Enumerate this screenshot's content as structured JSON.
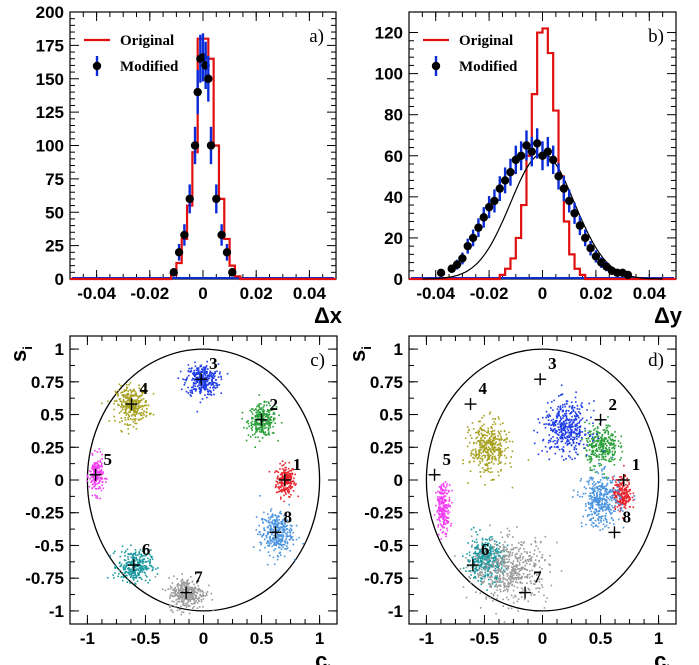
{
  "chart_data": [
    {
      "type": "histogram",
      "panel_label": "a)",
      "xlabel": "Δx",
      "ylabel": "",
      "xlim": [
        -0.05,
        0.05
      ],
      "ylim": [
        0,
        200
      ],
      "xticks": [
        "-0.04",
        "-0.02",
        "0",
        "0.02",
        "0.04"
      ],
      "yticks": [
        "0",
        "25",
        "50",
        "75",
        "100",
        "125",
        "150",
        "175",
        "200"
      ],
      "legend": [
        "Original",
        "Modified"
      ],
      "bin_width": 0.002,
      "bin_start": -0.012,
      "original_counts": [
        3,
        12,
        30,
        55,
        95,
        180,
        180,
        165,
        100,
        60,
        30,
        10,
        2
      ],
      "modified_points": [
        {
          "x": -0.011,
          "y": 5
        },
        {
          "x": -0.009,
          "y": 20
        },
        {
          "x": -0.007,
          "y": 33
        },
        {
          "x": -0.005,
          "y": 60
        },
        {
          "x": -0.003,
          "y": 100
        },
        {
          "x": -0.002,
          "y": 140
        },
        {
          "x": -0.001,
          "y": 165
        },
        {
          "x": 0.0,
          "y": 166
        },
        {
          "x": 0.001,
          "y": 160
        },
        {
          "x": 0.002,
          "y": 150
        },
        {
          "x": 0.003,
          "y": 100
        },
        {
          "x": 0.005,
          "y": 60
        },
        {
          "x": 0.007,
          "y": 33
        },
        {
          "x": 0.009,
          "y": 20
        },
        {
          "x": 0.011,
          "y": 5
        }
      ]
    },
    {
      "type": "histogram",
      "panel_label": "b)",
      "xlabel": "Δy",
      "ylabel": "",
      "xlim": [
        -0.05,
        0.05
      ],
      "ylim": [
        0,
        130
      ],
      "xticks": [
        "-0.04",
        "-0.02",
        "0",
        "0.02",
        "0.04"
      ],
      "yticks": [
        "0",
        "20",
        "40",
        "60",
        "80",
        "100",
        "120"
      ],
      "legend": [
        "Original",
        "Modified"
      ],
      "bin_width": 0.002,
      "bin_start": -0.016,
      "original_counts": [
        2,
        5,
        10,
        20,
        36,
        60,
        90,
        120,
        122,
        110,
        82,
        50,
        28,
        12,
        5,
        2
      ],
      "modified_points": [
        {
          "x": -0.038,
          "y": 3
        },
        {
          "x": -0.034,
          "y": 5
        },
        {
          "x": -0.032,
          "y": 7
        },
        {
          "x": -0.03,
          "y": 10
        },
        {
          "x": -0.028,
          "y": 16
        },
        {
          "x": -0.026,
          "y": 20
        },
        {
          "x": -0.024,
          "y": 25
        },
        {
          "x": -0.022,
          "y": 30
        },
        {
          "x": -0.02,
          "y": 35
        },
        {
          "x": -0.018,
          "y": 38
        },
        {
          "x": -0.016,
          "y": 44
        },
        {
          "x": -0.014,
          "y": 48
        },
        {
          "x": -0.012,
          "y": 52
        },
        {
          "x": -0.01,
          "y": 58
        },
        {
          "x": -0.008,
          "y": 60
        },
        {
          "x": -0.006,
          "y": 65
        },
        {
          "x": -0.004,
          "y": 62
        },
        {
          "x": -0.002,
          "y": 66
        },
        {
          "x": 0.0,
          "y": 60
        },
        {
          "x": 0.002,
          "y": 62
        },
        {
          "x": 0.004,
          "y": 58
        },
        {
          "x": 0.006,
          "y": 50
        },
        {
          "x": 0.008,
          "y": 44
        },
        {
          "x": 0.01,
          "y": 38
        },
        {
          "x": 0.012,
          "y": 32
        },
        {
          "x": 0.014,
          "y": 26
        },
        {
          "x": 0.016,
          "y": 20
        },
        {
          "x": 0.018,
          "y": 15
        },
        {
          "x": 0.02,
          "y": 11
        },
        {
          "x": 0.022,
          "y": 8
        },
        {
          "x": 0.024,
          "y": 6
        },
        {
          "x": 0.026,
          "y": 4
        },
        {
          "x": 0.028,
          "y": 3
        },
        {
          "x": 0.03,
          "y": 3
        },
        {
          "x": 0.032,
          "y": 2
        }
      ],
      "fit_peak": 61,
      "fit_sigma": 0.012
    },
    {
      "type": "scatter",
      "panel_label": "c)",
      "xlabel": "c_i",
      "ylabel": "s_i",
      "xlim": [
        -1.15,
        1.15
      ],
      "ylim": [
        -1.1,
        1.1
      ],
      "xticks": [
        "-1",
        "-0.5",
        "0",
        "0.5",
        "1"
      ],
      "yticks": [
        "-1",
        "-0.75",
        "-0.5",
        "-0.25",
        "0",
        "0.25",
        "0.5",
        "0.75",
        "1"
      ],
      "unit_circle": true,
      "clusters": [
        {
          "label": "1",
          "cx": 0.7,
          "cy": 0.0,
          "sx": 0.04,
          "sy": 0.06,
          "n": 220,
          "color": "#e8242c",
          "marker_x": 0.7,
          "marker_y": 0.0
        },
        {
          "label": "2",
          "cx": 0.5,
          "cy": 0.46,
          "sx": 0.06,
          "sy": 0.06,
          "n": 280,
          "color": "#2aa03a",
          "marker_x": 0.5,
          "marker_y": 0.46
        },
        {
          "label": "3",
          "cx": -0.02,
          "cy": 0.77,
          "sx": 0.07,
          "sy": 0.06,
          "n": 320,
          "color": "#1e3ce6",
          "marker_x": -0.02,
          "marker_y": 0.77
        },
        {
          "label": "4",
          "cx": -0.62,
          "cy": 0.58,
          "sx": 0.07,
          "sy": 0.07,
          "n": 320,
          "color": "#a7a120",
          "marker_x": -0.62,
          "marker_y": 0.58
        },
        {
          "label": "5",
          "cx": -0.93,
          "cy": 0.04,
          "sx": 0.03,
          "sy": 0.07,
          "n": 200,
          "color": "#f23ff2",
          "marker_x": -0.93,
          "marker_y": 0.04
        },
        {
          "label": "6",
          "cx": -0.6,
          "cy": -0.65,
          "sx": 0.07,
          "sy": 0.06,
          "n": 300,
          "color": "#1b9aa0",
          "marker_x": -0.6,
          "marker_y": -0.65
        },
        {
          "label": "7",
          "cx": -0.15,
          "cy": -0.86,
          "sx": 0.08,
          "sy": 0.06,
          "n": 320,
          "color": "#9a9a9a",
          "marker_x": -0.15,
          "marker_y": -0.86
        },
        {
          "label": "8",
          "cx": 0.62,
          "cy": -0.4,
          "sx": 0.07,
          "sy": 0.08,
          "n": 320,
          "color": "#4a94e0",
          "marker_x": 0.62,
          "marker_y": -0.4
        }
      ]
    },
    {
      "type": "scatter",
      "panel_label": "d)",
      "xlabel": "c_i",
      "ylabel": "s_i",
      "xlim": [
        -1.15,
        1.15
      ],
      "ylim": [
        -1.1,
        1.1
      ],
      "xticks": [
        "-1",
        "-0.5",
        "0",
        "0.5",
        "1"
      ],
      "yticks": [
        "-1",
        "-0.75",
        "-0.5",
        "-0.25",
        "0",
        "0.25",
        "0.5",
        "0.75",
        "1"
      ],
      "unit_circle": true,
      "clusters": [
        {
          "label": "1",
          "cx": 0.68,
          "cy": -0.1,
          "sx": 0.04,
          "sy": 0.06,
          "n": 220,
          "color": "#e8242c",
          "marker_x": 0.7,
          "marker_y": 0.0
        },
        {
          "label": "2",
          "cx": 0.5,
          "cy": 0.27,
          "sx": 0.07,
          "sy": 0.08,
          "n": 300,
          "color": "#2aa03a",
          "marker_x": 0.5,
          "marker_y": 0.46
        },
        {
          "label": "3",
          "cx": 0.2,
          "cy": 0.4,
          "sx": 0.1,
          "sy": 0.1,
          "n": 420,
          "color": "#1e3ce6",
          "marker_x": -0.02,
          "marker_y": 0.77
        },
        {
          "label": "4",
          "cx": -0.47,
          "cy": 0.25,
          "sx": 0.08,
          "sy": 0.1,
          "n": 380,
          "color": "#a7a120",
          "marker_x": -0.62,
          "marker_y": 0.58
        },
        {
          "label": "5",
          "cx": -0.86,
          "cy": -0.2,
          "sx": 0.03,
          "sy": 0.09,
          "n": 220,
          "color": "#f23ff2",
          "marker_x": -0.93,
          "marker_y": 0.04
        },
        {
          "label": "6",
          "cx": -0.5,
          "cy": -0.6,
          "sx": 0.08,
          "sy": 0.08,
          "n": 380,
          "color": "#1b9aa0",
          "marker_x": -0.6,
          "marker_y": -0.65
        },
        {
          "label": "7",
          "cx": -0.28,
          "cy": -0.68,
          "sx": 0.16,
          "sy": 0.12,
          "n": 520,
          "color": "#9a9a9a",
          "marker_x": -0.15,
          "marker_y": -0.86
        },
        {
          "label": "8",
          "cx": 0.5,
          "cy": -0.15,
          "sx": 0.08,
          "sy": 0.1,
          "n": 380,
          "color": "#4a94e0",
          "marker_x": 0.62,
          "marker_y": -0.4
        }
      ]
    }
  ],
  "colors": {
    "original": "#e01010",
    "modified_marker": "#000000",
    "modified_error": "#0a2bd8",
    "fit_curve": "#000000"
  }
}
